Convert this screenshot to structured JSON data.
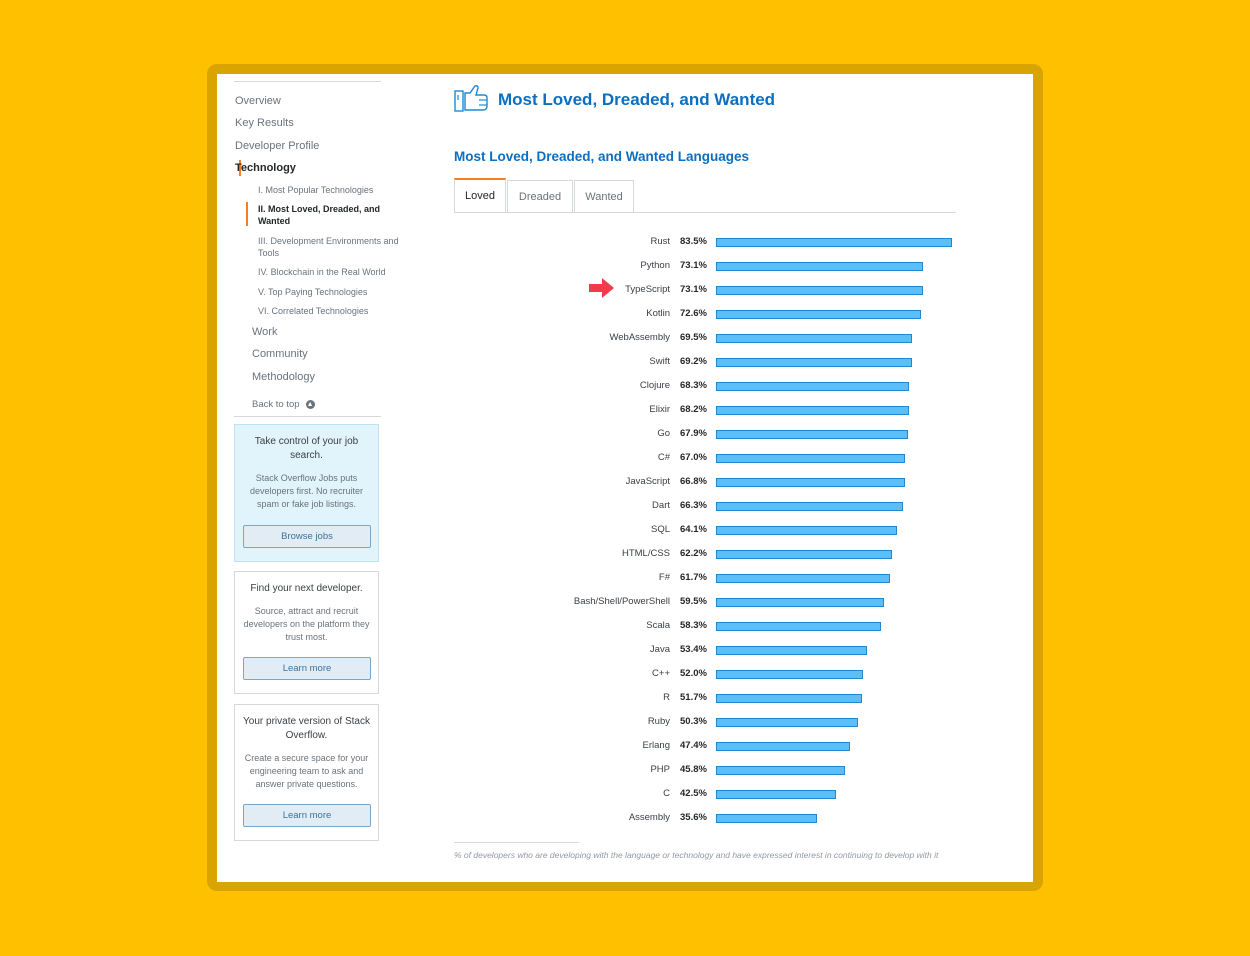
{
  "sidebar": {
    "nav": [
      {
        "label": "Overview"
      },
      {
        "label": "Key Results"
      },
      {
        "label": "Developer Profile"
      },
      {
        "label": "Technology"
      },
      {
        "label": "Work"
      },
      {
        "label": "Community"
      },
      {
        "label": "Methodology"
      }
    ],
    "sub_items": [
      {
        "label": "I. Most Popular Technologies"
      },
      {
        "label": "II. Most Loved, Dreaded, and Wanted"
      },
      {
        "label": "III. Development Environments and Tools"
      },
      {
        "label": "IV. Blockchain in the Real World"
      },
      {
        "label": "V. Top Paying Technologies"
      },
      {
        "label": "VI. Correlated Technologies"
      }
    ],
    "back_to_top": "Back to top",
    "cards": [
      {
        "title": "Take control of your job search.",
        "desc": "Stack Overflow Jobs puts developers first. No recruiter spam or fake job listings.",
        "button": "Browse jobs"
      },
      {
        "title": "Find your next developer.",
        "desc": "Source, attract and recruit developers on the platform they trust most.",
        "button": "Learn more"
      },
      {
        "title": "Your private version of Stack Overflow.",
        "desc": "Create a secure space for your engineering team to ask and answer private questions.",
        "button": "Learn more"
      }
    ]
  },
  "main": {
    "title": "Most Loved, Dreaded, and Wanted",
    "subtitle": "Most Loved, Dreaded, and Wanted Languages",
    "tabs": [
      {
        "label": "Loved"
      },
      {
        "label": "Dreaded"
      },
      {
        "label": "Wanted"
      }
    ],
    "footnote": "% of developers who are developing with the language or technology and have expressed interest in continuing to develop with it"
  },
  "colors": {
    "accent": "#0a6fc2",
    "bar_fill": "#5fbdf5",
    "bar_border": "#1d8ad6",
    "active_indicator": "#F48024",
    "background": "#FFC000",
    "arrow": "#f23a4a"
  },
  "chart_data": {
    "type": "bar",
    "orientation": "horizontal",
    "categories": [
      "Rust",
      "Python",
      "TypeScript",
      "Kotlin",
      "WebAssembly",
      "Swift",
      "Clojure",
      "Elixir",
      "Go",
      "C#",
      "JavaScript",
      "Dart",
      "SQL",
      "HTML/CSS",
      "F#",
      "Bash/Shell/PowerShell",
      "Scala",
      "Java",
      "C++",
      "R",
      "Ruby",
      "Erlang",
      "PHP",
      "C",
      "Assembly"
    ],
    "labels": [
      "83.5%",
      "73.1%",
      "73.1%",
      "72.6%",
      "69.5%",
      "69.2%",
      "68.3%",
      "68.2%",
      "67.9%",
      "67.0%",
      "66.8%",
      "66.3%",
      "64.1%",
      "62.2%",
      "61.7%",
      "59.5%",
      "58.3%",
      "53.4%",
      "52.0%",
      "51.7%",
      "50.3%",
      "47.4%",
      "45.8%",
      "42.5%",
      "35.6%"
    ],
    "values": [
      83.5,
      73.1,
      73.1,
      72.6,
      69.5,
      69.2,
      68.3,
      68.2,
      67.9,
      67.0,
      66.8,
      66.3,
      64.1,
      62.2,
      61.7,
      59.5,
      58.3,
      53.4,
      52.0,
      51.7,
      50.3,
      47.4,
      45.8,
      42.5,
      35.6
    ],
    "highlighted": "TypeScript",
    "xlim": [
      0,
      83.5
    ]
  }
}
